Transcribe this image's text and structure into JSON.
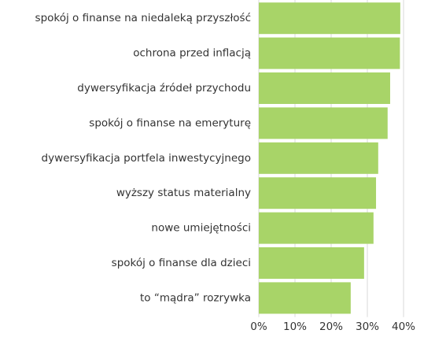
{
  "chart_data": {
    "type": "bar",
    "orientation": "horizontal",
    "categories": [
      "spokój o finanse na niedaleką przyszłość",
      "ochrona przed inflacją",
      "dywersyfikacja źródeł przychodu",
      "spokój o finanse na emeryturę",
      "dywersyfikacja portfela inwestycyjnego",
      "wyższy status materialny",
      "nowe umiejętności",
      "spokój o finanse dla dzieci",
      "to “mądra” rozrywka"
    ],
    "values": [
      39.1,
      39,
      36.3,
      35.6,
      33,
      32.4,
      31.7,
      29.1,
      25.4
    ],
    "color": "#a8d468",
    "xlim": [
      0,
      40
    ],
    "xticks": [
      {
        "value": 0,
        "label": "0%"
      },
      {
        "value": 10,
        "label": "10%"
      },
      {
        "value": 20,
        "label": "20%"
      },
      {
        "value": 30,
        "label": "30%"
      },
      {
        "value": 40,
        "label": "40%"
      }
    ],
    "grid": true
  }
}
